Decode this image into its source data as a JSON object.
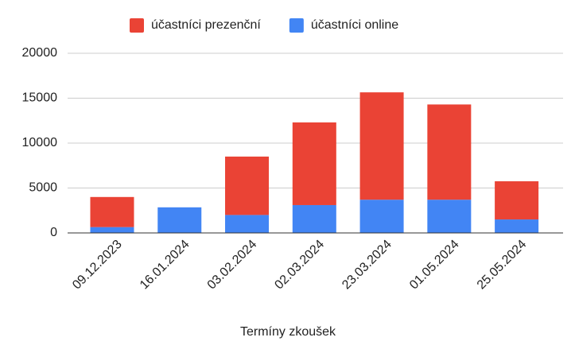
{
  "chart_data": {
    "type": "stacked-bar",
    "x_label": "Termíny zkoušek",
    "categories": [
      "09.12.2023",
      "16.01.2024",
      "03.02.2024",
      "02.03.2024",
      "23.03.2024",
      "01.05.2024",
      "25.05.2024"
    ],
    "series": [
      {
        "name": "účastníci prezenční",
        "color": "#ea4335",
        "values": [
          3350,
          0,
          6500,
          9200,
          11950,
          10600,
          4250
        ]
      },
      {
        "name": "účastníci online",
        "color": "#4285f4",
        "values": [
          650,
          2850,
          2000,
          3100,
          3700,
          3700,
          1500
        ]
      }
    ],
    "ylim": [
      0,
      20000
    ],
    "yticks": [
      0,
      5000,
      10000,
      15000,
      20000
    ],
    "grid": true,
    "legend": "top"
  }
}
